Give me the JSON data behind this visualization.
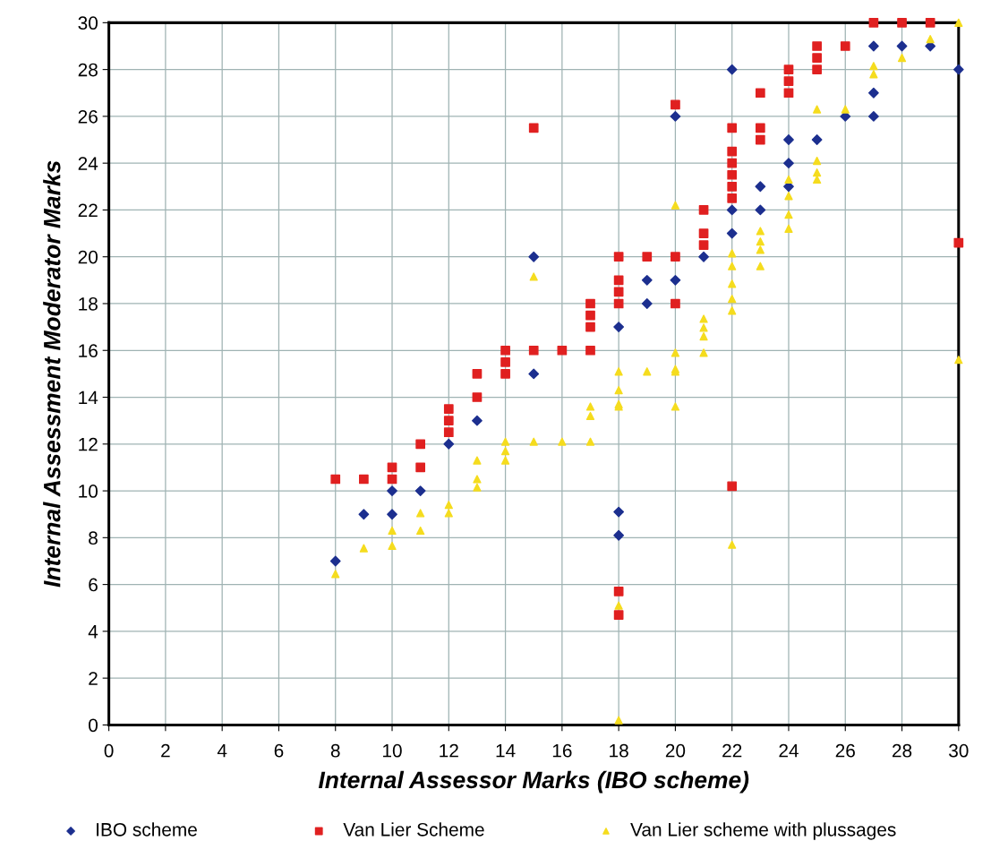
{
  "chart_data": {
    "type": "scatter",
    "xlabel": "Internal Assessor Marks (IBO scheme)",
    "ylabel": "Internal Assessment Moderator Marks",
    "xlim": [
      0,
      30
    ],
    "ylim": [
      0,
      30
    ],
    "xticks": [
      0,
      2,
      4,
      6,
      8,
      10,
      12,
      14,
      16,
      18,
      20,
      22,
      24,
      26,
      28,
      30
    ],
    "yticks": [
      0,
      2,
      4,
      6,
      8,
      10,
      12,
      14,
      16,
      18,
      20,
      22,
      24,
      26,
      28,
      30
    ],
    "grid": true,
    "legend": "bottom",
    "series": [
      {
        "name": "IBO scheme",
        "color": "#1c2f8f",
        "marker": "diamond",
        "x": [
          8,
          9,
          10,
          10,
          11,
          12,
          13,
          15,
          15,
          18,
          18,
          18,
          19,
          19,
          20,
          20,
          21,
          22,
          22,
          22,
          23,
          23,
          24,
          24,
          24,
          25,
          26,
          27,
          27,
          27,
          28,
          29,
          30
        ],
        "values": [
          7,
          9,
          10,
          9,
          10,
          12,
          13,
          20,
          15,
          17,
          9.1,
          8.1,
          19,
          18,
          26,
          19,
          20,
          28,
          22,
          21,
          23,
          22,
          25,
          24,
          23,
          25,
          26,
          26,
          27,
          29,
          29,
          29,
          28
        ]
      },
      {
        "name": "Van Lier Scheme",
        "color": "#e02020",
        "marker": "square",
        "x": [
          8,
          9,
          10,
          10,
          11,
          11,
          12,
          12,
          12,
          13,
          13,
          14,
          14,
          14,
          15,
          15,
          16,
          17,
          17,
          17,
          17,
          18,
          18,
          18,
          18,
          18,
          18,
          19,
          20,
          20,
          20,
          21,
          21,
          21,
          22,
          22,
          22,
          22,
          22,
          22,
          22,
          23,
          23,
          23,
          24,
          24,
          24,
          25,
          25,
          25,
          26,
          27,
          28,
          29,
          30
        ],
        "values": [
          10.5,
          10.5,
          11,
          10.5,
          12,
          11,
          13.5,
          13,
          12.5,
          15,
          14,
          16,
          15.5,
          15,
          25.5,
          16,
          16,
          18,
          17.5,
          17,
          16,
          20,
          19,
          18.5,
          18,
          5.7,
          4.7,
          20,
          26.5,
          20,
          18,
          22,
          21,
          20.5,
          25.5,
          24.5,
          24,
          23.5,
          23,
          22.5,
          10.2,
          27,
          25.5,
          25,
          28,
          27.5,
          27,
          29,
          28.5,
          28,
          29,
          30,
          30,
          30,
          20.6
        ]
      },
      {
        "name": "Van Lier scheme with plussages",
        "color": "#f5dc1e",
        "marker": "triangle",
        "x": [
          8,
          9,
          10,
          10,
          11,
          11,
          12,
          12,
          13,
          13,
          13,
          14,
          14,
          14,
          15,
          15,
          16,
          17,
          17,
          17,
          18,
          18,
          18,
          18,
          18,
          18,
          19,
          20,
          20,
          20,
          20,
          20,
          21,
          21,
          21,
          21,
          22,
          22,
          22,
          22,
          22,
          22,
          23,
          23,
          23,
          23,
          24,
          24,
          24,
          24,
          25,
          25,
          25,
          25,
          26,
          27,
          27,
          28,
          29,
          30,
          30
        ],
        "values": [
          6.45,
          7.55,
          8.3,
          7.65,
          9.05,
          8.3,
          9.4,
          9.05,
          11.3,
          10.5,
          10.15,
          12.1,
          11.7,
          11.3,
          19.15,
          12.1,
          12.1,
          12.1,
          13.6,
          13.2,
          15.1,
          14.3,
          13.6,
          5.1,
          0.2,
          13.7,
          15.1,
          22.2,
          15.9,
          15.2,
          15.1,
          13.6,
          17.35,
          16.97,
          16.6,
          15.9,
          20.15,
          19.6,
          18.85,
          18.2,
          17.7,
          7.7,
          21.1,
          20.65,
          20.3,
          19.6,
          23.3,
          22.6,
          21.8,
          21.2,
          26.3,
          24.1,
          23.6,
          23.3,
          26.3,
          28.15,
          27.8,
          28.5,
          29.3,
          30,
          15.6
        ]
      }
    ]
  }
}
